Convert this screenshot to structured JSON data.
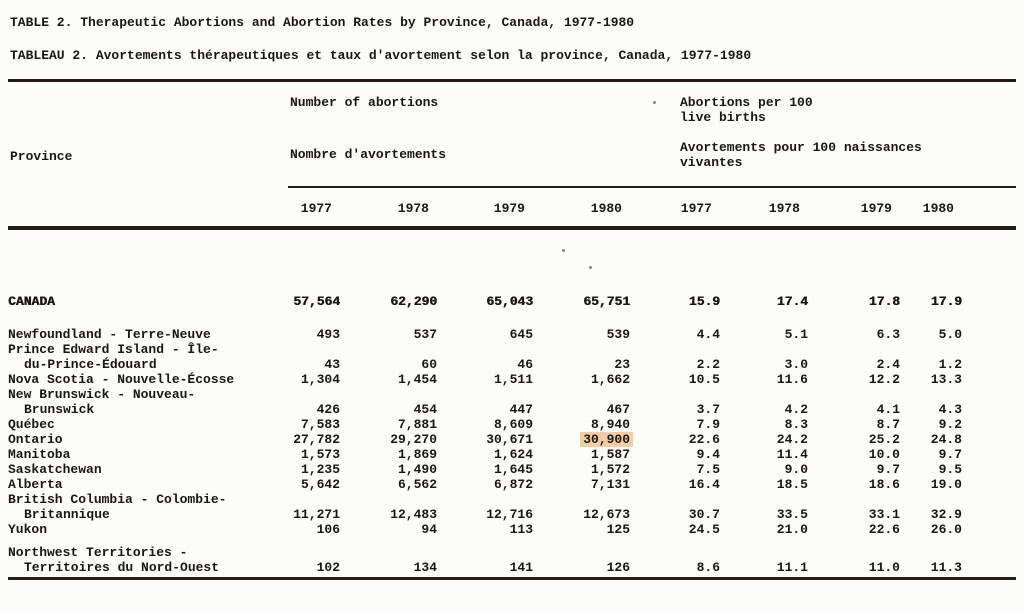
{
  "titles": {
    "en": "TABLE 2. Therapeutic Abortions and Abortion Rates by Province, Canada, 1977-1980",
    "fr": "TABLEAU 2. Avortements thérapeutiques et taux d'avortement selon la province, Canada, 1977-1980"
  },
  "header": {
    "province": "Province",
    "counts_en": "Number of abortions",
    "counts_fr": "Nombre d'avortements",
    "rates_en": "Abortions per 100\nlive births",
    "rates_fr": "Avortements pour 100 naissances\nvivantes",
    "years": [
      "1977",
      "1978",
      "1979",
      "1980",
      "1977",
      "1978",
      "1979",
      "1980"
    ]
  },
  "highlight_color": "#f2cda5",
  "chart_data": {
    "type": "table",
    "title": "Therapeutic Abortions and Abortion Rates by Province, Canada, 1977-1980",
    "column_groups": [
      "Number of abortions 1977-1980",
      "Abortions per 100 live births 1977-1980"
    ],
    "years": [
      1977,
      1978,
      1979,
      1980
    ]
  },
  "table": {
    "rows": [
      {
        "label": "CANADA",
        "emph": true,
        "spacer_after": 18,
        "values": [
          "57,564",
          "62,290",
          "65,043",
          "65,751",
          "15.9",
          "17.4",
          "17.8",
          "17.9"
        ]
      },
      {
        "label": "Newfoundland - Terre-Neuve",
        "values": [
          "493",
          "537",
          "645",
          "539",
          "4.4",
          "5.1",
          "6.3",
          "5.0"
        ]
      },
      {
        "label": "Prince Edward Island - Île-",
        "values": []
      },
      {
        "label": "du-Prince-Édouard",
        "indent": true,
        "values": [
          "43",
          "60",
          "46",
          "23",
          "2.2",
          "3.0",
          "2.4",
          "1.2"
        ]
      },
      {
        "label": "Nova Scotia - Nouvelle-Écosse",
        "values": [
          "1,304",
          "1,454",
          "1,511",
          "1,662",
          "10.5",
          "11.6",
          "12.2",
          "13.3"
        ]
      },
      {
        "label": "New Brunswick - Nouveau-",
        "values": []
      },
      {
        "label": "Brunswick",
        "indent": true,
        "values": [
          "426",
          "454",
          "447",
          "467",
          "3.7",
          "4.2",
          "4.1",
          "4.3"
        ]
      },
      {
        "label": "Québec",
        "values": [
          "7,583",
          "7,881",
          "8,609",
          "8,940",
          "7.9",
          "8.3",
          "8.7",
          "9.2"
        ]
      },
      {
        "label": "Ontario",
        "highlight": 3,
        "values": [
          "27,782",
          "29,270",
          "30,671",
          "30,900",
          "22.6",
          "24.2",
          "25.2",
          "24.8"
        ]
      },
      {
        "label": "Manitoba",
        "values": [
          "1,573",
          "1,869",
          "1,624",
          "1,587",
          "9.4",
          "11.4",
          "10.0",
          "9.7"
        ]
      },
      {
        "label": "Saskatchewan",
        "values": [
          "1,235",
          "1,490",
          "1,645",
          "1,572",
          "7.5",
          "9.0",
          "9.7",
          "9.5"
        ]
      },
      {
        "label": "Alberta",
        "values": [
          "5,642",
          "6,562",
          "6,872",
          "7,131",
          "16.4",
          "18.5",
          "18.6",
          "19.0"
        ]
      },
      {
        "label": "British Columbia - Colombie-",
        "values": []
      },
      {
        "label": "Britannique",
        "indent": true,
        "values": [
          "11,271",
          "12,483",
          "12,716",
          "12,673",
          "30.7",
          "33.5",
          "33.1",
          "32.9"
        ]
      },
      {
        "label": "Yukon",
        "spacer_after": 8,
        "values": [
          "106",
          "94",
          "113",
          "125",
          "24.5",
          "21.0",
          "22.6",
          "26.0"
        ]
      },
      {
        "label": "Northwest Territories -",
        "values": []
      },
      {
        "label": "Territoires du Nord-Ouest",
        "indent": true,
        "values": [
          "102",
          "134",
          "141",
          "126",
          "8.6",
          "11.1",
          "11.0",
          "11.3"
        ]
      }
    ]
  }
}
